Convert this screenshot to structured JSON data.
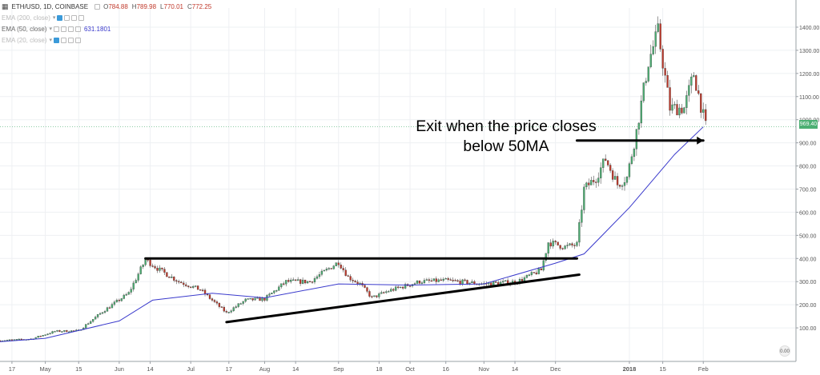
{
  "legend": {
    "symbol": "ETH/USD, 1D, COINBASE",
    "ohlc": [
      {
        "key": "O",
        "value": "784.88"
      },
      {
        "key": "H",
        "value": "789.98"
      },
      {
        "key": "L",
        "value": "770.01"
      },
      {
        "key": "C",
        "value": "772.25"
      }
    ],
    "indicators": [
      {
        "label": "EMA (200, close)",
        "value": "",
        "active": false
      },
      {
        "label": "EMA (50, close)",
        "value": "631.1801",
        "active": true
      },
      {
        "label": "EMA (20, close)",
        "value": "",
        "active": false
      }
    ]
  },
  "last_price_badge": "969.40",
  "annotation": {
    "line1": "Exit when the price closes",
    "line2": "below 50MA"
  },
  "auto_scale_label": "0.00",
  "colors": {
    "up": "#4caf73",
    "down": "#c0392b",
    "ema": "#3a3acc",
    "trendline": "#000000"
  },
  "chart_data": {
    "type": "candlestick",
    "title": "ETH/USD, 1D, COINBASE",
    "ylim": [
      0,
      1450
    ],
    "y_ticks": [
      100,
      200,
      300,
      400,
      500,
      600,
      700,
      800,
      900,
      1000,
      1100,
      1200,
      1300,
      1400
    ],
    "y_tick_labels": [
      "100.00",
      "200.00",
      "300.00",
      "400.00",
      "500.00",
      "600.00",
      "700.00",
      "800.00",
      "900.00",
      "1000.00",
      "1100.00",
      "1200.00",
      "1300.00",
      "1400.00"
    ],
    "x_ticks": [
      {
        "label": "17",
        "date": "2017-04-17"
      },
      {
        "label": "May",
        "date": "2017-05-01"
      },
      {
        "label": "15",
        "date": "2017-05-15"
      },
      {
        "label": "Jun",
        "date": "2017-06-01"
      },
      {
        "label": "14",
        "date": "2017-06-14"
      },
      {
        "label": "Jul",
        "date": "2017-07-01"
      },
      {
        "label": "17",
        "date": "2017-07-17"
      },
      {
        "label": "Aug",
        "date": "2017-08-01"
      },
      {
        "label": "14",
        "date": "2017-08-14"
      },
      {
        "label": "Sep",
        "date": "2017-09-01"
      },
      {
        "label": "18",
        "date": "2017-09-18"
      },
      {
        "label": "Oct",
        "date": "2017-10-01"
      },
      {
        "label": "16",
        "date": "2017-10-16"
      },
      {
        "label": "Nov",
        "date": "2017-11-01"
      },
      {
        "label": "14",
        "date": "2017-11-14"
      },
      {
        "label": "Dec",
        "date": "2017-12-01"
      },
      {
        "label": "2018",
        "date": "2018-01-01"
      },
      {
        "label": "15",
        "date": "2018-01-15"
      },
      {
        "label": "Feb",
        "date": "2018-02-01"
      }
    ],
    "price_anchors": [
      [
        "2017-04-12",
        45
      ],
      [
        "2017-04-25",
        52
      ],
      [
        "2017-05-05",
        85
      ],
      [
        "2017-05-15",
        88
      ],
      [
        "2017-05-25",
        170
      ],
      [
        "2017-06-05",
        250
      ],
      [
        "2017-06-12",
        395
      ],
      [
        "2017-06-18",
        350
      ],
      [
        "2017-06-26",
        300
      ],
      [
        "2017-07-05",
        265
      ],
      [
        "2017-07-16",
        165
      ],
      [
        "2017-07-24",
        220
      ],
      [
        "2017-08-01",
        225
      ],
      [
        "2017-08-10",
        300
      ],
      [
        "2017-08-20",
        300
      ],
      [
        "2017-09-01",
        385
      ],
      [
        "2017-09-05",
        320
      ],
      [
        "2017-09-10",
        290
      ],
      [
        "2017-09-15",
        230
      ],
      [
        "2017-09-22",
        260
      ],
      [
        "2017-10-05",
        300
      ],
      [
        "2017-10-16",
        305
      ],
      [
        "2017-11-01",
        290
      ],
      [
        "2017-11-15",
        300
      ],
      [
        "2017-11-25",
        350
      ],
      [
        "2017-11-28",
        470
      ],
      [
        "2017-12-05",
        450
      ],
      [
        "2017-12-10",
        460
      ],
      [
        "2017-12-13",
        700
      ],
      [
        "2017-12-18",
        750
      ],
      [
        "2017-12-22",
        830
      ],
      [
        "2017-12-27",
        720
      ],
      [
        "2017-12-31",
        750
      ],
      [
        "2018-01-04",
        950
      ],
      [
        "2018-01-09",
        1250
      ],
      [
        "2018-01-13",
        1380
      ],
      [
        "2018-01-18",
        1050
      ],
      [
        "2018-01-24",
        1050
      ],
      [
        "2018-01-28",
        1200
      ],
      [
        "2018-02-02",
        970
      ]
    ],
    "ema50_anchors": [
      [
        "2017-04-12",
        40
      ],
      [
        "2017-05-01",
        55
      ],
      [
        "2017-06-01",
        130
      ],
      [
        "2017-06-15",
        220
      ],
      [
        "2017-07-10",
        250
      ],
      [
        "2017-08-01",
        230
      ],
      [
        "2017-09-01",
        290
      ],
      [
        "2017-10-01",
        285
      ],
      [
        "2017-11-01",
        290
      ],
      [
        "2017-12-01",
        380
      ],
      [
        "2017-12-13",
        420
      ],
      [
        "2018-01-01",
        620
      ],
      [
        "2018-01-20",
        850
      ],
      [
        "2018-02-01",
        969
      ]
    ],
    "lines": [
      {
        "name": "resistance",
        "points": [
          [
            "2017-06-12",
            400
          ],
          [
            "2017-12-10",
            400
          ]
        ]
      },
      {
        "name": "rising-support",
        "points": [
          [
            "2017-07-16",
            125
          ],
          [
            "2017-12-11",
            330
          ]
        ]
      },
      {
        "name": "annotation-arrow",
        "points": [
          [
            "2017-12-10",
            910
          ],
          [
            "2018-02-01",
            910
          ]
        ]
      }
    ],
    "grid": true
  }
}
